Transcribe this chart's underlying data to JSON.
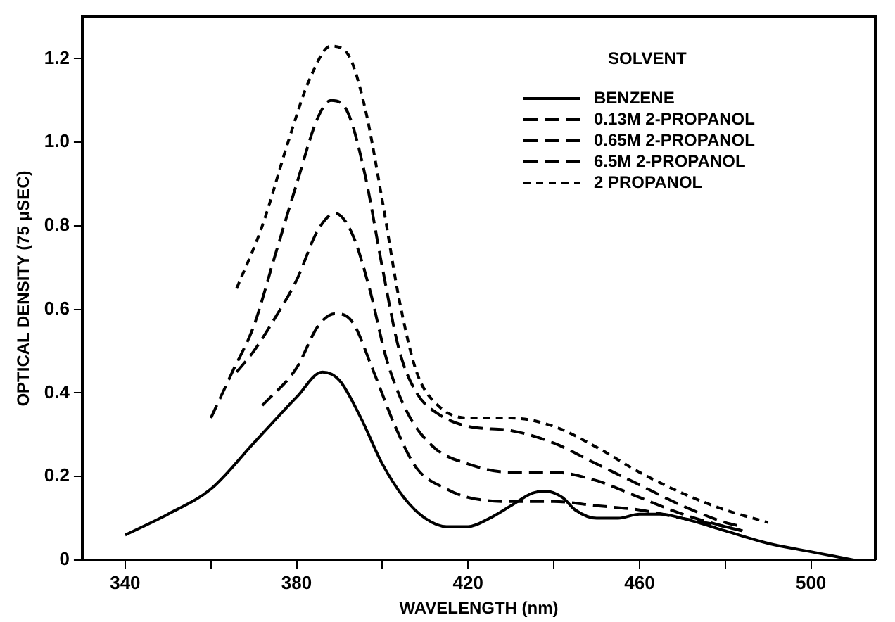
{
  "chart_data": {
    "type": "line",
    "xlabel": "WAVELENGTH (nm)",
    "ylabel": "OPTICAL DENSITY (75 μSEC)",
    "legend_title": "SOLVENT",
    "legend": "top right",
    "marker": "none",
    "grid": false,
    "xlim": [
      330,
      515
    ],
    "ylim": [
      0,
      1.3
    ],
    "xticks": [
      340,
      {
        "value": 360,
        "label": null
      },
      380,
      {
        "value": 400,
        "label": null
      },
      420,
      {
        "value": 440,
        "label": null
      },
      460,
      {
        "value": 480,
        "label": null
      },
      500
    ],
    "yticks": [
      0,
      0.2,
      0.4,
      0.6,
      0.8,
      {
        "value": 1,
        "label": "1.0"
      },
      1.2
    ],
    "series": [
      {
        "name": "BENZENE",
        "color": "#000000",
        "line_style": "solid",
        "x": [
          340,
          350,
          360,
          370,
          380,
          386,
          390,
          395,
          400,
          405,
          410,
          415,
          420,
          425,
          430,
          435,
          438,
          442,
          445,
          450,
          455,
          460,
          465,
          470,
          480,
          490,
          500,
          505,
          510
        ],
        "values": [
          0.06,
          0.11,
          0.17,
          0.28,
          0.39,
          0.45,
          0.43,
          0.34,
          0.23,
          0.15,
          0.1,
          0.08,
          0.08,
          0.1,
          0.13,
          0.16,
          0.165,
          0.15,
          0.12,
          0.1,
          0.1,
          0.11,
          0.11,
          0.1,
          0.07,
          0.04,
          0.02,
          0.01,
          0
        ]
      },
      {
        "name": "0.13M 2-PROPANOL",
        "color": "#000000",
        "line_style": "dashed",
        "x": [
          372,
          380,
          385,
          389,
          393,
          398,
          403,
          408,
          415,
          420,
          430,
          440,
          450,
          460,
          470,
          480,
          484
        ],
        "values": [
          0.37,
          0.46,
          0.56,
          0.59,
          0.57,
          0.45,
          0.32,
          0.22,
          0.17,
          0.15,
          0.14,
          0.14,
          0.13,
          0.12,
          0.1,
          0.08,
          0.07
        ]
      },
      {
        "name": "0.65M 2-PROPANOL",
        "color": "#000000",
        "line_style": "dashed",
        "x": [
          366,
          370,
          375,
          380,
          385,
          389,
          393,
          397,
          401,
          406,
          412,
          420,
          430,
          440,
          450,
          460,
          470,
          480,
          484
        ],
        "values": [
          0.45,
          0.5,
          0.58,
          0.67,
          0.79,
          0.83,
          0.78,
          0.65,
          0.48,
          0.35,
          0.27,
          0.23,
          0.21,
          0.21,
          0.19,
          0.15,
          0.11,
          0.08,
          0.07
        ]
      },
      {
        "name": "6.5M 2-PROPANOL",
        "color": "#000000",
        "line_style": "dashed",
        "x": [
          360,
          365,
          370,
          375,
          380,
          385,
          388,
          392,
          396,
          400,
          404,
          408,
          413,
          420,
          430,
          440,
          450,
          460,
          470,
          480,
          484
        ],
        "values": [
          0.34,
          0.45,
          0.56,
          0.73,
          0.9,
          1.06,
          1.1,
          1.07,
          0.92,
          0.7,
          0.5,
          0.4,
          0.35,
          0.32,
          0.31,
          0.28,
          0.23,
          0.18,
          0.13,
          0.09,
          0.08
        ]
      },
      {
        "name": "2 PROPANOL",
        "color": "#000000",
        "line_style": "dotted",
        "x": [
          366,
          372,
          378,
          383,
          388,
          392,
          396,
          400,
          404,
          408,
          413,
          420,
          430,
          440,
          450,
          460,
          470,
          480,
          490
        ],
        "values": [
          0.65,
          0.8,
          1,
          1.15,
          1.23,
          1.21,
          1.08,
          0.86,
          0.62,
          0.45,
          0.37,
          0.34,
          0.34,
          0.32,
          0.27,
          0.21,
          0.16,
          0.12,
          0.09
        ]
      }
    ]
  }
}
